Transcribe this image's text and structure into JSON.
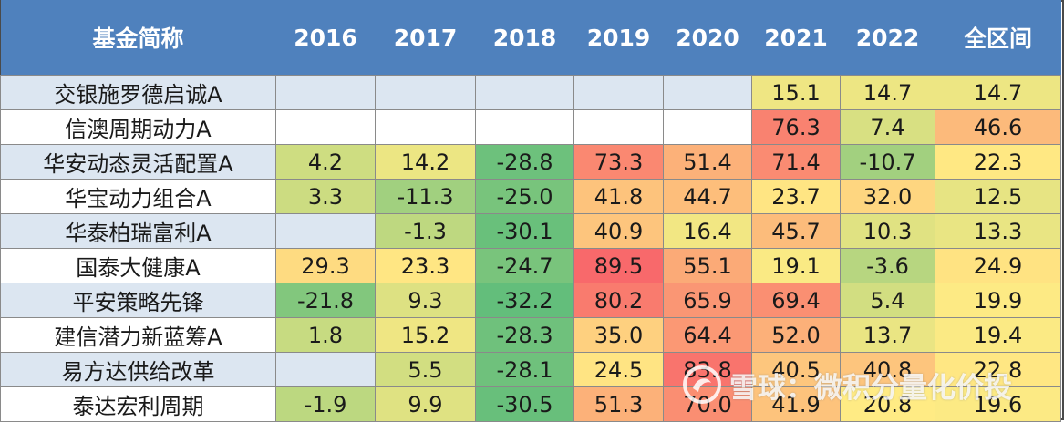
{
  "chart_data": {
    "type": "table",
    "header_label": "基金简称",
    "columns": [
      "2016",
      "2017",
      "2018",
      "2019",
      "2020",
      "2021",
      "2022",
      "全区间"
    ],
    "rows": [
      {
        "name": "交银施罗德启诚A",
        "values": [
          null,
          null,
          null,
          null,
          null,
          "15.1",
          "14.7",
          "14.7"
        ]
      },
      {
        "name": "信澳周期动力A",
        "values": [
          null,
          null,
          null,
          null,
          null,
          "76.3",
          "7.4",
          "46.6"
        ]
      },
      {
        "name": "华安动态灵活配置A",
        "values": [
          "4.2",
          "14.2",
          "-28.8",
          "73.3",
          "51.4",
          "71.4",
          "-10.7",
          "22.3"
        ]
      },
      {
        "name": "华宝动力组合A",
        "values": [
          "3.3",
          "-11.3",
          "-25.0",
          "41.8",
          "44.7",
          "23.7",
          "32.0",
          "12.5"
        ]
      },
      {
        "name": "华泰柏瑞富利A",
        "values": [
          null,
          "-1.3",
          "-30.1",
          "40.9",
          "16.4",
          "45.7",
          "10.3",
          "13.3"
        ]
      },
      {
        "name": "国泰大健康A",
        "values": [
          "29.3",
          "23.3",
          "-24.7",
          "89.5",
          "55.1",
          "19.1",
          "-3.6",
          "24.9"
        ]
      },
      {
        "name": "平安策略先锋",
        "values": [
          "-21.8",
          "9.3",
          "-32.2",
          "80.2",
          "65.9",
          "69.4",
          "5.4",
          "19.9"
        ]
      },
      {
        "name": "建信潜力新蓝筹A",
        "values": [
          "1.8",
          "15.2",
          "-28.3",
          "35.0",
          "64.4",
          "52.0",
          "13.7",
          "19.4"
        ]
      },
      {
        "name": "易方达供给改革",
        "values": [
          null,
          "5.5",
          "-28.1",
          "24.5",
          "83.8",
          "40.5",
          "40.8",
          "22.8"
        ]
      },
      {
        "name": "泰达宏利周期",
        "values": [
          "-1.9",
          "9.9",
          "-30.5",
          "51.3",
          "70.0",
          "41.9",
          "20.8",
          "19.6"
        ]
      }
    ],
    "color_scale": {
      "low": "#63be7b",
      "mid": "#ffeb84",
      "high": "#f8696b"
    }
  },
  "watermark": {
    "text": "雪球：微积分量化价投",
    "icon": "snowball-logo-icon"
  }
}
